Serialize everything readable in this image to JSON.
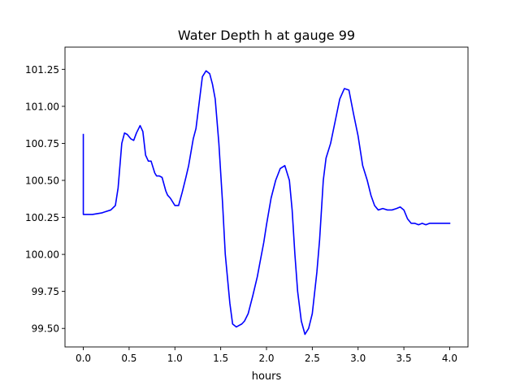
{
  "chart_data": {
    "type": "line",
    "title": "Water Depth h at gauge 99",
    "xlabel": "hours",
    "ylabel": "",
    "xlim": [
      -0.2,
      4.2
    ],
    "ylim": [
      99.375,
      101.4
    ],
    "xticks": [
      0.0,
      0.5,
      1.0,
      1.5,
      2.0,
      2.5,
      3.0,
      3.5,
      4.0
    ],
    "xtick_labels": [
      "0.0",
      "0.5",
      "1.0",
      "1.5",
      "2.0",
      "2.5",
      "3.0",
      "3.5",
      "4.0"
    ],
    "yticks": [
      99.5,
      99.75,
      100.0,
      100.25,
      100.5,
      100.75,
      101.0,
      101.25
    ],
    "ytick_labels": [
      "99.50",
      "99.75",
      "100.00",
      "100.25",
      "100.50",
      "100.75",
      "101.00",
      "101.25"
    ],
    "grid": false,
    "series": [
      {
        "color": "#0000ff",
        "x": [
          0.0,
          0.0,
          0.0,
          0.1,
          0.2,
          0.3,
          0.35,
          0.38,
          0.42,
          0.45,
          0.48,
          0.52,
          0.55,
          0.58,
          0.62,
          0.65,
          0.68,
          0.71,
          0.74,
          0.78,
          0.8,
          0.83,
          0.86,
          0.9,
          0.92,
          0.95,
          1.0,
          1.04,
          1.08,
          1.12,
          1.15,
          1.2,
          1.23,
          1.27,
          1.3,
          1.34,
          1.38,
          1.41,
          1.44,
          1.48,
          1.52,
          1.55,
          1.6,
          1.63,
          1.67,
          1.7,
          1.73,
          1.76,
          1.8,
          1.85,
          1.9,
          1.93,
          1.97,
          2.0,
          2.05,
          2.1,
          2.15,
          2.2,
          2.25,
          2.28,
          2.31,
          2.34,
          2.38,
          2.42,
          2.46,
          2.5,
          2.55,
          2.58,
          2.6,
          2.62,
          2.65,
          2.7,
          2.75,
          2.8,
          2.85,
          2.9,
          2.95,
          3.0,
          3.05,
          3.1,
          3.14,
          3.18,
          3.22,
          3.27,
          3.32,
          3.37,
          3.42,
          3.46,
          3.5,
          3.54,
          3.58,
          3.62,
          3.66,
          3.7,
          3.74,
          3.78,
          3.82,
          3.86,
          3.9,
          3.94,
          3.98,
          4.0
        ],
        "values": [
          100.81,
          100.27,
          100.27,
          100.27,
          100.28,
          100.3,
          100.33,
          100.45,
          100.75,
          100.82,
          100.81,
          100.78,
          100.77,
          100.82,
          100.87,
          100.83,
          100.67,
          100.63,
          100.63,
          100.55,
          100.53,
          100.53,
          100.52,
          100.43,
          100.4,
          100.38,
          100.33,
          100.33,
          100.42,
          100.52,
          100.6,
          100.78,
          100.85,
          101.05,
          101.2,
          101.24,
          101.22,
          101.15,
          101.05,
          100.75,
          100.35,
          100.0,
          99.67,
          99.53,
          99.51,
          99.52,
          99.53,
          99.55,
          99.6,
          99.72,
          99.85,
          99.95,
          100.08,
          100.2,
          100.38,
          100.5,
          100.58,
          100.6,
          100.5,
          100.3,
          100.0,
          99.75,
          99.55,
          99.46,
          99.5,
          99.6,
          99.88,
          100.1,
          100.3,
          100.5,
          100.65,
          100.75,
          100.9,
          101.05,
          101.12,
          101.11,
          100.95,
          100.8,
          100.6,
          100.5,
          100.4,
          100.33,
          100.3,
          100.31,
          100.3,
          100.3,
          100.31,
          100.32,
          100.3,
          100.24,
          100.21,
          100.21,
          100.2,
          100.21,
          100.2,
          100.21,
          100.21,
          100.21,
          100.21,
          100.21,
          100.21,
          100.21
        ]
      }
    ]
  }
}
